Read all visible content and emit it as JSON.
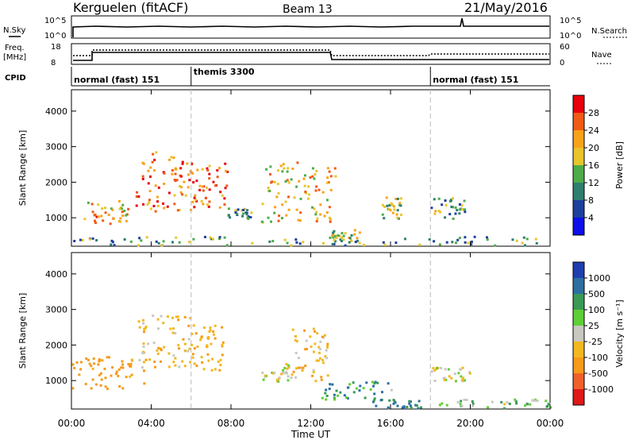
{
  "header": {
    "station": "Kerguelen (fitACF)",
    "beam": "Beam 13",
    "date": "21/May/2016"
  },
  "left_labels": {
    "nsky": "N.Sky",
    "freq": "Freq.",
    "freq_unit": "[MHz]",
    "cpid": "CPID"
  },
  "right_labels": {
    "nsearch": "N.Search",
    "nave": "Nave"
  },
  "noise_panel": {
    "ticks_left": [
      "10^5",
      "10^0"
    ],
    "ticks_right": [
      "10^5",
      "10^0"
    ]
  },
  "freq_panel": {
    "ticks_left": [
      "18",
      "8"
    ],
    "ticks_right": [
      "60",
      "0"
    ]
  },
  "cpid_bar": [
    {
      "label": "normal (fast) 151",
      "start_hour": 0
    },
    {
      "label": "themis 3300",
      "start_hour": 6
    },
    {
      "label": "normal (fast) 151",
      "start_hour": 18
    }
  ],
  "power_colorbar": {
    "title": "Power [dB]",
    "ticks": [
      "28",
      "24",
      "20",
      "16",
      "12",
      "8",
      "4"
    ],
    "colors": [
      "#e8000b",
      "#f05a14",
      "#f8a21a",
      "#e7c52b",
      "#4cac4a",
      "#2c7f6e",
      "#1d3f9e",
      "#0d10e8"
    ]
  },
  "velocity_colorbar": {
    "title": "Velocity [m s⁻¹]",
    "ticks": [
      "1000",
      "500",
      "100",
      "25",
      "-25",
      "-100",
      "-500",
      "-1000"
    ],
    "colors": [
      "#1f3fb0",
      "#2c6fa0",
      "#3a9a55",
      "#5ecf36",
      "#c8c8c0",
      "#f2b820",
      "#f59a1a",
      "#f0602a",
      "#e01818"
    ]
  },
  "chart_data": [
    {
      "type": "heatmap",
      "panel": "power",
      "xlabel": "",
      "ylabel": "Slant Range [km]",
      "xlim_hours": [
        0,
        24
      ],
      "ylim": [
        200,
        4600
      ],
      "yticks": [
        1000,
        2000,
        3000,
        4000
      ],
      "vertical_markers_hours": [
        6,
        18
      ],
      "echo_regions": [
        {
          "t": [
            0.6,
            2.8
          ],
          "r": [
            800,
            1500
          ],
          "power_db": 20
        },
        {
          "t": [
            3.2,
            6.0
          ],
          "r": [
            1200,
            2900
          ],
          "power_db": 22
        },
        {
          "t": [
            6.0,
            7.8
          ],
          "r": [
            1300,
            2600
          ],
          "power_db": 24
        },
        {
          "t": [
            7.8,
            9.0
          ],
          "r": [
            1000,
            1300
          ],
          "power_db": 10
        },
        {
          "t": [
            9.5,
            13.2
          ],
          "r": [
            900,
            2600
          ],
          "power_db": 18
        },
        {
          "t": [
            13.0,
            14.5
          ],
          "r": [
            300,
            700
          ],
          "power_db": 14
        },
        {
          "t": [
            15.5,
            16.5
          ],
          "r": [
            1000,
            1600
          ],
          "power_db": 14
        },
        {
          "t": [
            18.0,
            19.8
          ],
          "r": [
            1000,
            1600
          ],
          "power_db": 12
        },
        {
          "t": [
            0.0,
            24.0
          ],
          "r": [
            250,
            500
          ],
          "power_db": 10
        }
      ]
    },
    {
      "type": "heatmap",
      "panel": "velocity",
      "xlabel": "Time UT",
      "ylabel": "Slant Range [km]",
      "xlim_hours": [
        0,
        24
      ],
      "xticks": [
        "00:00",
        "04:00",
        "08:00",
        "12:00",
        "16:00",
        "20:00",
        "00:00"
      ],
      "ylim": [
        200,
        4600
      ],
      "yticks": [
        1000,
        2000,
        3000,
        4000
      ],
      "vertical_markers_hours": [
        6,
        18
      ],
      "echo_regions": [
        {
          "t": [
            0.0,
            3.6
          ],
          "r": [
            800,
            1700
          ],
          "velocity_ms": -150
        },
        {
          "t": [
            3.2,
            6.0
          ],
          "r": [
            1400,
            2900
          ],
          "velocity_ms": -60
        },
        {
          "t": [
            6.0,
            7.6
          ],
          "r": [
            1300,
            2600
          ],
          "velocity_ms": -80
        },
        {
          "t": [
            9.5,
            11.0
          ],
          "r": [
            1000,
            1500
          ],
          "velocity_ms": 0
        },
        {
          "t": [
            11.0,
            13.0
          ],
          "r": [
            1000,
            2500
          ],
          "velocity_ms": -60
        },
        {
          "t": [
            12.5,
            16.0
          ],
          "r": [
            500,
            1000
          ],
          "velocity_ms": 80
        },
        {
          "t": [
            15.0,
            17.5
          ],
          "r": [
            250,
            500
          ],
          "velocity_ms": 120
        },
        {
          "t": [
            18.0,
            20.0
          ],
          "r": [
            1000,
            1400
          ],
          "velocity_ms": -20
        },
        {
          "t": [
            18.0,
            24.0
          ],
          "r": [
            250,
            500
          ],
          "velocity_ms": 30
        }
      ]
    }
  ]
}
